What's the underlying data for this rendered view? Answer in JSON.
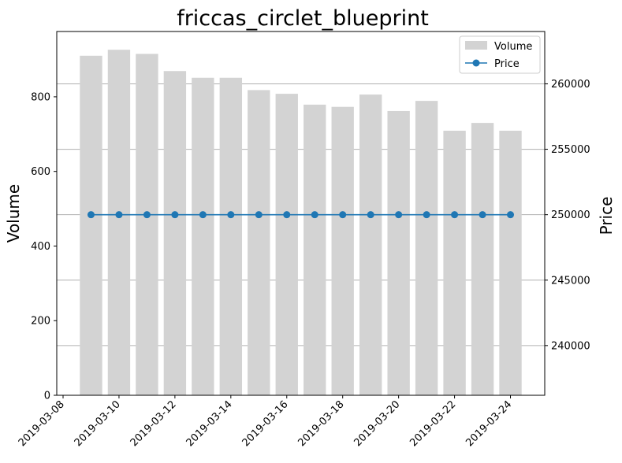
{
  "chart_data": {
    "type": "bar+line",
    "title": "friccas_circlet_blueprint",
    "x": [
      "2019-03-09",
      "2019-03-10",
      "2019-03-11",
      "2019-03-12",
      "2019-03-13",
      "2019-03-14",
      "2019-03-15",
      "2019-03-16",
      "2019-03-17",
      "2019-03-18",
      "2019-03-19",
      "2019-03-20",
      "2019-03-21",
      "2019-03-22",
      "2019-03-23",
      "2019-03-24"
    ],
    "x_ticks": [
      "2019-03-08",
      "2019-03-10",
      "2019-03-12",
      "2019-03-14",
      "2019-03-16",
      "2019-03-18",
      "2019-03-20",
      "2019-03-22",
      "2019-03-24"
    ],
    "xlim": [
      "2019-03-08",
      "2019-03-25"
    ],
    "series": [
      {
        "name": "Volume",
        "kind": "bar",
        "axis": "left",
        "color": "#d3d3d3",
        "values": [
          910,
          926,
          915,
          869,
          851,
          851,
          818,
          808,
          779,
          773,
          806,
          762,
          789,
          709,
          730,
          709
        ]
      },
      {
        "name": "Price",
        "kind": "line",
        "axis": "right",
        "color": "#1f77b4",
        "values": [
          250000,
          250000,
          250000,
          250000,
          250000,
          250000,
          250000,
          250000,
          250000,
          250000,
          250000,
          250000,
          250000,
          250000,
          250000,
          250000
        ]
      }
    ],
    "ylabel_left": "Volume",
    "ylabel_right": "Price",
    "ylim_left": [
      0,
      975
    ],
    "yticks_left": [
      0,
      200,
      400,
      600,
      800
    ],
    "ylim_right": [
      236200,
      264000
    ],
    "yticks_right": [
      240000,
      245000,
      250000,
      255000,
      260000
    ],
    "grid": "horizontal, right axis",
    "legend": "top-right"
  }
}
